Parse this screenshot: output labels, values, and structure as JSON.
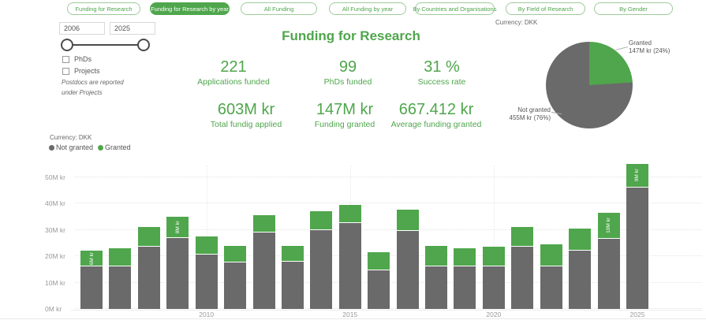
{
  "theme": {
    "green": "#4FA64C",
    "gray": "#6A6A6A",
    "tab_border": "#9ECB9B",
    "axis_text": "#9A9A9A"
  },
  "tabs": [
    {
      "label": "Funding for Research",
      "selected": false
    },
    {
      "label": "Funding for Research by year",
      "selected": true
    },
    {
      "label": "All Funding",
      "selected": false
    },
    {
      "label": "All Funding by year",
      "selected": false
    },
    {
      "label": "By Countries and Organisations",
      "selected": false
    },
    {
      "label": "By Field of Research",
      "selected": false
    },
    {
      "label": "By Gender",
      "selected": false
    }
  ],
  "filters": {
    "year_from": "2006",
    "year_to": "2025",
    "checkbox_phds": "PhDs",
    "checkbox_projects": "Projects",
    "note_line1": "Postdocs are reported",
    "note_line2": "under Projects"
  },
  "header": {
    "title": "Funding for Research",
    "currency_label": "Currency: DKK"
  },
  "kpis": [
    {
      "value": "221",
      "label": "Applications funded"
    },
    {
      "value": "99",
      "label": "PhDs funded"
    },
    {
      "value": "31 %",
      "label": "Success rate"
    },
    {
      "value": "603M kr",
      "label": "Total fundig applied"
    },
    {
      "value": "147M kr",
      "label": "Funding granted"
    },
    {
      "value": "667.412 kr",
      "label": "Average funding granted"
    }
  ],
  "pie": {
    "granted_name": "Granted",
    "granted_value": "147M kr (24%)",
    "granted_pct": 24,
    "not_granted_name": "Not granted",
    "not_granted_value": "455M kr (76%)",
    "not_granted_pct": 76
  },
  "bar_section": {
    "currency_label": "Currency: DKK",
    "legend": [
      {
        "label": "Not granted",
        "color": "#6A6A6A"
      },
      {
        "label": "Granted",
        "color": "#4FA64C"
      }
    ]
  },
  "chart_data": {
    "type": "bar",
    "stacked": true,
    "title": "",
    "xlabel": "",
    "ylabel": "",
    "ylim": [
      0,
      50
    ],
    "grid": true,
    "legend_position": "top-left",
    "categories": [
      "2006",
      "2007",
      "2008",
      "2009",
      "2010",
      "2011",
      "2012",
      "2013",
      "2014",
      "2015",
      "2016",
      "2017",
      "2018",
      "2019",
      "2020",
      "2021",
      "2022",
      "2023",
      "2024",
      "2025"
    ],
    "series": [
      {
        "name": "Not granted",
        "color": "#6A6A6A",
        "values": [
          16,
          16,
          23.5,
          27,
          20.5,
          17.5,
          29,
          18,
          30,
          32.5,
          14.5,
          29.5,
          16,
          16,
          16,
          23.5,
          16,
          22,
          26.5,
          46
        ]
      },
      {
        "name": "Granted",
        "color": "#4FA64C",
        "values": [
          6,
          7,
          7.5,
          8,
          7,
          6.5,
          6.5,
          6,
          7,
          7,
          7,
          8,
          8,
          7,
          7.5,
          7.5,
          8.5,
          8.5,
          10,
          9
        ]
      }
    ],
    "bar_labels": {
      "2006": "6M kr",
      "2009": "8M kr",
      "2024": "10M kr",
      "2025": "9M kr"
    },
    "y_tick_values": [
      0,
      10,
      20,
      30,
      40,
      50
    ],
    "y_tick_labels": [
      "0M kr",
      "10M kr",
      "20M kr",
      "30M kr",
      "40M kr",
      "50M kr"
    ],
    "x_tick_labels": [
      "2010",
      "2015",
      "2020",
      "2025"
    ]
  }
}
